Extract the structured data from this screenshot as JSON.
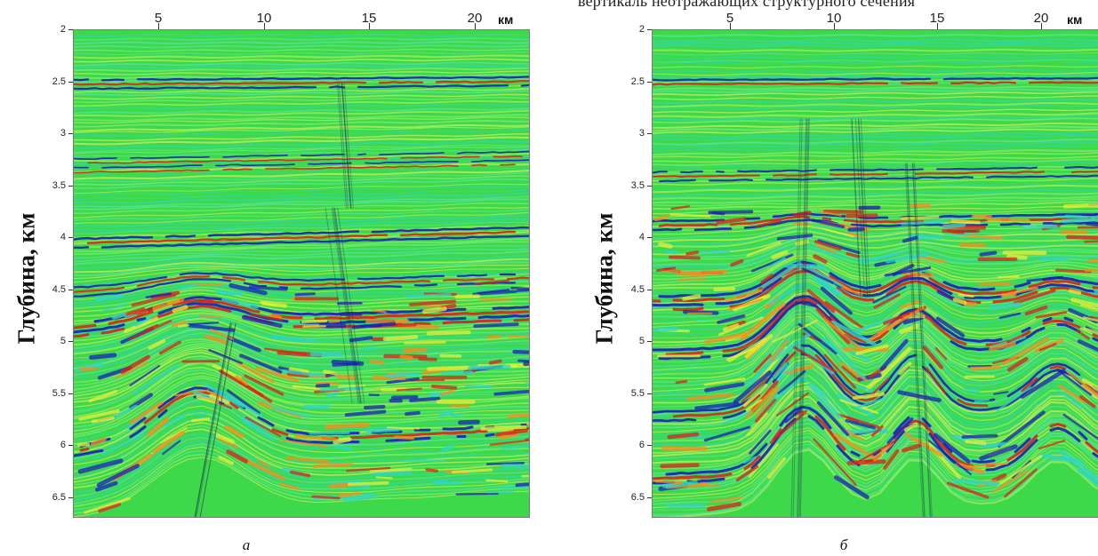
{
  "top_caption": "вертикаль неотражающих структурного сечения",
  "panels": [
    {
      "letter": "а",
      "ylabel": "Глубина, км",
      "x_unit": "км",
      "x_ticks": [
        "5",
        "10",
        "15",
        "20"
      ],
      "y_ticks": [
        "2",
        "2.5",
        "3",
        "3.5",
        "4",
        "4.5",
        "5",
        "5.5",
        "6",
        "6.5"
      ]
    },
    {
      "letter": "б",
      "ylabel": "Глубина, км",
      "x_unit": "км",
      "x_ticks": [
        "5",
        "10",
        "15",
        "20"
      ],
      "y_ticks": [
        "2",
        "2.5",
        "3",
        "3.5",
        "4",
        "4.5",
        "5",
        "5.5",
        "6",
        "6.5"
      ]
    }
  ],
  "colors": {
    "background_green": "#3ed94a",
    "reflector_red": "#d9221b",
    "reflector_blue": "#1a1fb8",
    "reflector_yellow": "#e8ec3a",
    "reflector_cyan": "#2fd6c8"
  }
}
